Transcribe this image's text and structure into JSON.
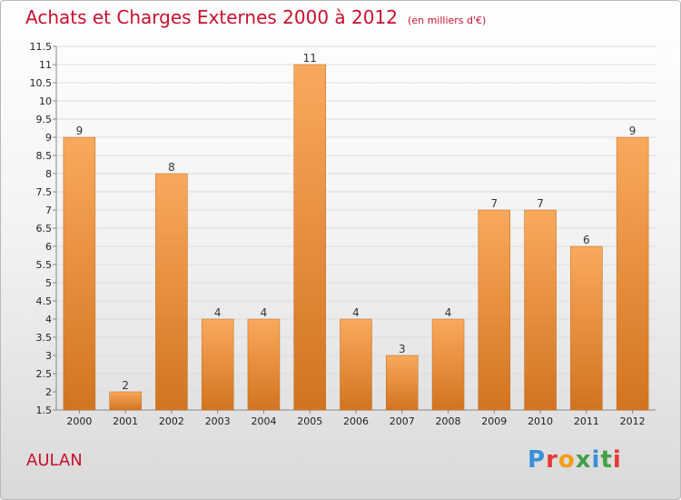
{
  "header": {
    "title": "Achats et Charges Externes 2000 à 2012",
    "unit": "(en milliers d'€)"
  },
  "footer": {
    "commune": "AULAN",
    "logo_text": "Proxiti"
  },
  "colors": {
    "title": "#c8102e",
    "bar_light": "#f9a95c",
    "bar_dark": "#d2741f",
    "logo_letters": [
      "#3a8fd8",
      "#e53935",
      "#f39c12",
      "#43a047",
      "#3a8fd8",
      "#43a047",
      "#e53935"
    ]
  },
  "chart_data": {
    "type": "bar",
    "categories": [
      "2000",
      "2001",
      "2002",
      "2003",
      "2004",
      "2005",
      "2006",
      "2007",
      "2008",
      "2009",
      "2010",
      "2011",
      "2012"
    ],
    "values": [
      9,
      2,
      8,
      4,
      4,
      11,
      4,
      3,
      4,
      7,
      7,
      6,
      9
    ],
    "ylim": [
      1.5,
      11.5
    ],
    "ytick_step": 0.5,
    "yticks": [
      "1.5",
      "2",
      "2.5",
      "3",
      "3.5",
      "4",
      "4.5",
      "5",
      "5.5",
      "6",
      "6.5",
      "7",
      "7.5",
      "8",
      "8.5",
      "9",
      "9.5",
      "10",
      "10.5",
      "11",
      "11.5"
    ],
    "grid": true,
    "legend": "none"
  }
}
